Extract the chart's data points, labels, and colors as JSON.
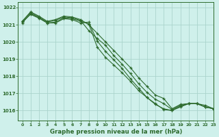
{
  "title": "Graphe pression niveau de la mer (hPa)",
  "bg_color": "#cff0eb",
  "grid_color": "#aad4cc",
  "line_color": "#2d6a2d",
  "xlim": [
    -0.5,
    23
  ],
  "ylim": [
    1015.4,
    1022.3
  ],
  "yticks": [
    1016,
    1017,
    1018,
    1019,
    1020,
    1021,
    1022
  ],
  "xticks": [
    0,
    1,
    2,
    3,
    4,
    5,
    6,
    7,
    8,
    9,
    10,
    11,
    12,
    13,
    14,
    15,
    16,
    17,
    18,
    19,
    20,
    21,
    22,
    23
  ],
  "series": [
    [
      1021.2,
      1021.75,
      1021.5,
      1021.2,
      1021.3,
      1021.5,
      1021.45,
      1021.3,
      1021.0,
      1020.5,
      1020.0,
      1019.5,
      1019.0,
      1018.5,
      1017.9,
      1017.4,
      1016.9,
      1016.7,
      1016.1,
      1016.35,
      1016.4,
      1016.4,
      1016.2,
      1016.1
    ],
    [
      1021.2,
      1021.7,
      1021.45,
      1021.15,
      1021.25,
      1021.45,
      1021.4,
      1021.25,
      1020.65,
      1020.2,
      1019.8,
      1019.2,
      1018.7,
      1018.15,
      1017.55,
      1017.05,
      1016.65,
      1016.4,
      1016.05,
      1016.3,
      1016.4,
      1016.4,
      1016.2,
      1016.1
    ],
    [
      1021.1,
      1021.65,
      1021.4,
      1021.1,
      1021.15,
      1021.4,
      1021.35,
      1021.2,
      1021.05,
      1019.7,
      1019.1,
      1018.65,
      1018.2,
      1017.7,
      1017.15,
      1016.75,
      1016.35,
      1016.1,
      1016.0,
      1016.2,
      1016.4,
      1016.4,
      1016.3,
      1016.1
    ],
    [
      1021.15,
      1021.6,
      1021.38,
      1021.1,
      1021.1,
      1021.35,
      1021.3,
      1021.1,
      1021.15,
      1020.05,
      1019.45,
      1018.95,
      1018.45,
      1017.85,
      1017.3,
      1016.75,
      1016.4,
      1016.05,
      1016.0,
      1016.25,
      1016.4,
      1016.4,
      1016.2,
      1016.1
    ]
  ]
}
